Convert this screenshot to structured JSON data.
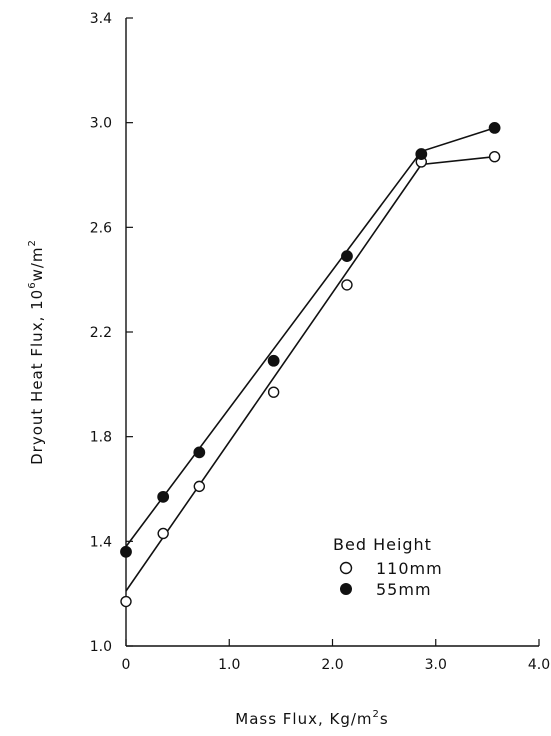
{
  "chart_data": {
    "type": "scatter",
    "xlabel": "Mass Flux, Kg/m",
    "xlabel_sup": "2",
    "xlabel_tail": "s",
    "ylabel": "Dryout Heat Flux, 10",
    "ylabel_sup1": "6",
    "ylabel_mid": "w/m",
    "ylabel_sup2": "2",
    "xlim": [
      0,
      4.0
    ],
    "ylim": [
      1.0,
      3.4
    ],
    "x_ticks": [
      {
        "value": 0,
        "label": "0"
      },
      {
        "value": 1.0,
        "label": "1.0"
      },
      {
        "value": 2.0,
        "label": "2.0"
      },
      {
        "value": 3.0,
        "label": "3.0"
      },
      {
        "value": 4.0,
        "label": "4.0"
      }
    ],
    "y_ticks": [
      {
        "value": 1.0,
        "label": "1.0"
      },
      {
        "value": 1.4,
        "label": "1.4"
      },
      {
        "value": 1.8,
        "label": "1.8"
      },
      {
        "value": 2.2,
        "label": "2.2"
      },
      {
        "value": 2.6,
        "label": "2.6"
      },
      {
        "value": 3.0,
        "label": "3.0"
      },
      {
        "value": 3.4,
        "label": "3.4"
      }
    ],
    "legend_title": "Bed Height",
    "legend_placement": "bottom-right",
    "series": [
      {
        "name": "110mm",
        "marker": "open-circle",
        "points": [
          [
            0.0,
            1.17
          ],
          [
            0.36,
            1.43
          ],
          [
            0.71,
            1.61
          ],
          [
            1.43,
            1.97
          ],
          [
            2.14,
            2.38
          ],
          [
            2.86,
            2.85
          ],
          [
            3.57,
            2.87
          ]
        ],
        "fit_line": [
          [
            0.0,
            1.21
          ],
          [
            2.86,
            2.84
          ],
          [
            3.57,
            2.87
          ]
        ]
      },
      {
        "name": "55mm",
        "marker": "filled-circle",
        "points": [
          [
            0.0,
            1.36
          ],
          [
            0.36,
            1.57
          ],
          [
            0.71,
            1.74
          ],
          [
            1.43,
            2.09
          ],
          [
            2.14,
            2.49
          ],
          [
            2.86,
            2.88
          ],
          [
            3.57,
            2.98
          ]
        ],
        "fit_line": [
          [
            0.0,
            1.38
          ],
          [
            2.86,
            2.89
          ],
          [
            3.57,
            2.98
          ]
        ]
      }
    ]
  }
}
